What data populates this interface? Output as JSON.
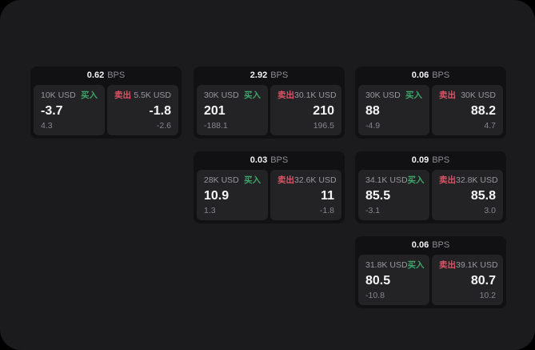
{
  "labels": {
    "bps_unit": "BPS",
    "buy": "买入",
    "sell": "卖出"
  },
  "colors": {
    "page_background": "#1b1b1d",
    "card_background": "#111113",
    "panel_background": "#232326",
    "buy_green": "#3da56a",
    "sell_red": "#d85566",
    "primary_text": "#f5f5f6",
    "muted_text": "#98989c"
  },
  "cards": [
    {
      "bps": "0.62",
      "buy": {
        "size": "10K USD",
        "price": "-3.7",
        "sub": "4.3"
      },
      "sell": {
        "size": "5.5K USD",
        "price": "-1.8",
        "sub": "-2.6"
      }
    },
    {
      "bps": "2.92",
      "buy": {
        "size": "30K USD",
        "price": "201",
        "sub": "-188.1"
      },
      "sell": {
        "size": "30.1K USD",
        "price": "210",
        "sub": "196.5"
      }
    },
    {
      "bps": "0.06",
      "buy": {
        "size": "30K USD",
        "price": "88",
        "sub": "-4.9"
      },
      "sell": {
        "size": "30K USD",
        "price": "88.2",
        "sub": "4.7"
      }
    },
    {
      "bps": "0.03",
      "buy": {
        "size": "28K USD",
        "price": "10.9",
        "sub": "1.3"
      },
      "sell": {
        "size": "32.6K USD",
        "price": "11",
        "sub": "-1.8"
      }
    },
    {
      "bps": "0.09",
      "buy": {
        "size": "34.1K USD",
        "price": "85.5",
        "sub": "-3.1"
      },
      "sell": {
        "size": "32.8K USD",
        "price": "85.8",
        "sub": "3.0"
      }
    },
    {
      "bps": "0.06",
      "buy": {
        "size": "31.8K USD",
        "price": "80.5",
        "sub": "-10.8"
      },
      "sell": {
        "size": "39.1K USD",
        "price": "80.7",
        "sub": "10.2"
      }
    }
  ]
}
